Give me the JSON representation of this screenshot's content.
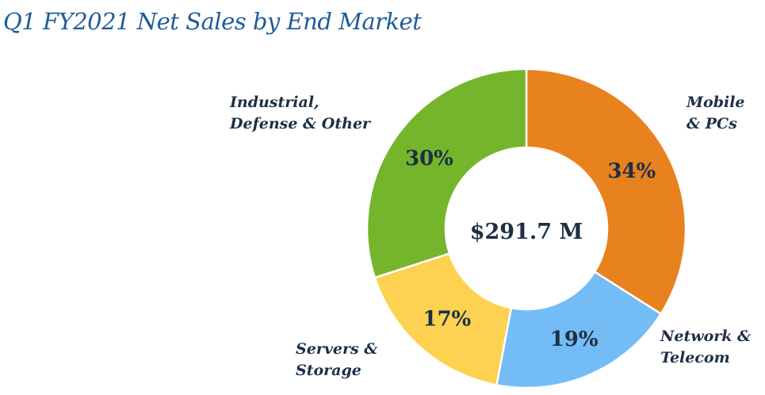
{
  "chart_data": {
    "type": "pie",
    "title": "Q1 FY2021 Net Sales by End Market",
    "center_label": "$291.7 M",
    "slices": [
      {
        "label_lines": [
          "Mobile",
          "& PCs"
        ],
        "value": 34,
        "value_label": "34%",
        "color": "#e8821e"
      },
      {
        "label_lines": [
          "Network &",
          "Telecom"
        ],
        "value": 19,
        "value_label": "19%",
        "color": "#74bcf5"
      },
      {
        "label_lines": [
          "Servers &",
          "Storage"
        ],
        "value": 17,
        "value_label": "17%",
        "color": "#fdd251"
      },
      {
        "label_lines": [
          "Industrial,",
          "Defense & Other"
        ],
        "value": 30,
        "value_label": "30%",
        "color": "#75b52c"
      }
    ],
    "donut": true,
    "legend": "none"
  },
  "colors": {
    "title": "#1f5c99",
    "label_text": "#1d2f45",
    "separator": "#ffffff"
  }
}
